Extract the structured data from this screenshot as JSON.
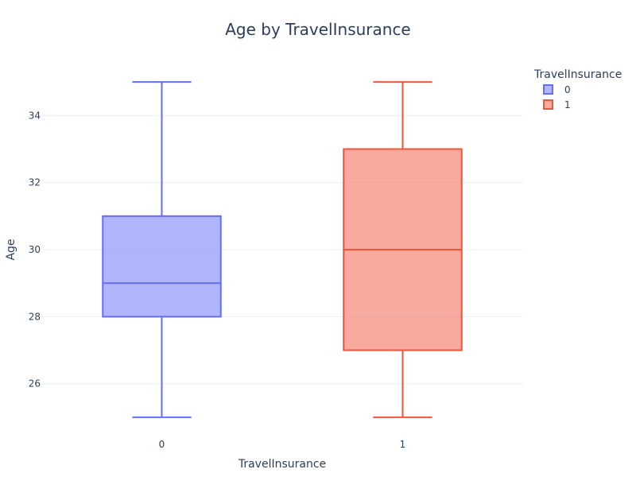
{
  "chart_data": {
    "type": "box",
    "title": "Age by TravelInsurance",
    "xlabel": "TravelInsurance",
    "ylabel": "Age",
    "categories": [
      "0",
      "1"
    ],
    "ylim": [
      24.5,
      35.5
    ],
    "yticks": [
      26,
      28,
      30,
      32,
      34
    ],
    "grid": true,
    "legend": {
      "title": "TravelInsurance",
      "placement": "top-right"
    },
    "series": [
      {
        "name": "0",
        "category": "0",
        "min": 25,
        "q1": 28,
        "median": 29,
        "q3": 31,
        "max": 35,
        "color": "#636efa"
      },
      {
        "name": "1",
        "category": "1",
        "min": 25,
        "q1": 27,
        "median": 30,
        "q3": 33,
        "max": 35,
        "color": "#ef553b"
      }
    ]
  }
}
